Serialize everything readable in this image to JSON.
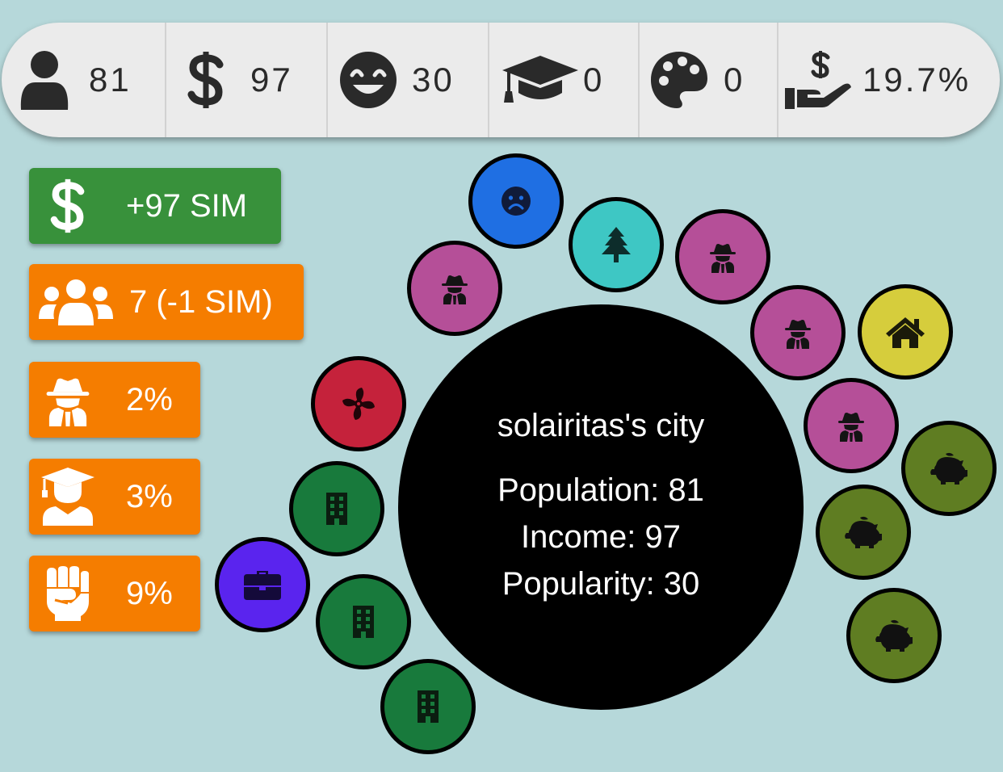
{
  "stats": {
    "population": "81",
    "income": "97",
    "popularity": "30",
    "education": "0",
    "culture": "0",
    "tax_rate": "19.7%"
  },
  "left_panel": {
    "income_label": "+97 SIM",
    "groups_label": "7 (-1 SIM)",
    "crime_label": "2%",
    "education_label": "3%",
    "protest_label": "9%"
  },
  "city": {
    "title": "solairitas's city",
    "population_line": "Population: 81",
    "income_line": "Income: 97",
    "popularity_line": "Popularity: 30"
  },
  "colors": {
    "background": "#b6d8da",
    "income_button": "#38913b",
    "stat_button": "#f57d00",
    "sad_node": "#1f6fe3",
    "park_node": "#3ec7c4",
    "crime_node": "#b54f98",
    "home_node": "#d6cd3c",
    "bank_node": "#5f7d22",
    "office_node": "#187a3c",
    "fan_node": "#c5223b",
    "job_node": "#5a24ee"
  },
  "map_nodes": [
    {
      "type": "sad",
      "icon": "sad-face-icon"
    },
    {
      "type": "park",
      "icon": "tree-icon"
    },
    {
      "type": "crime",
      "icon": "spy-icon"
    },
    {
      "type": "home",
      "icon": "house-icon"
    },
    {
      "type": "bank",
      "icon": "piggy-bank-icon"
    },
    {
      "type": "office",
      "icon": "building-icon"
    },
    {
      "type": "fan",
      "icon": "fan-icon"
    },
    {
      "type": "job",
      "icon": "briefcase-icon"
    }
  ]
}
